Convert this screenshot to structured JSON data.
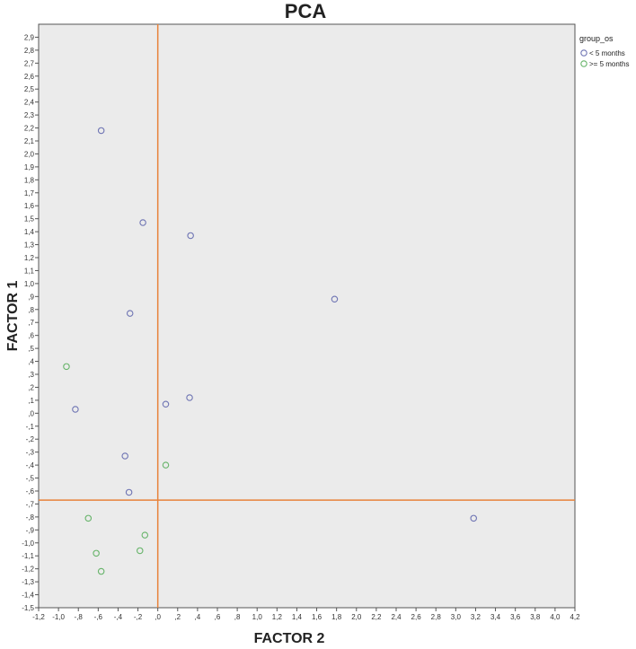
{
  "chart_data": {
    "type": "scatter",
    "title": "PCA",
    "xlabel": "FACTOR 2",
    "ylabel": "FACTOR 1",
    "xlim": [
      -1.2,
      4.2
    ],
    "ylim": [
      -1.5,
      3.0
    ],
    "x_tick_step": 0.2,
    "y_tick_step": 0.1,
    "x_tick_labels": [
      "-1,2",
      "-1,0",
      "-,8",
      "-,6",
      "-,4",
      "-,2",
      ",0",
      ",2",
      ",4",
      ",6",
      ",8",
      "1,0",
      "1,2",
      "1,4",
      "1,6",
      "1,8",
      "2,0",
      "2,2",
      "2,4",
      "2,6",
      "2,8",
      "3,0",
      "3,2",
      "3,4",
      "3,6",
      "3,8",
      "4,0",
      "4,2"
    ],
    "y_tick_labels": [
      "-1,5",
      "-1,4",
      "-1,3",
      "-1,2",
      "-1,1",
      "-1,0",
      "-,9",
      "-,8",
      "-,7",
      "-,6",
      "-,5",
      "-,4",
      "-,3",
      "-,2",
      "-,1",
      ",0",
      ",1",
      ",2",
      ",3",
      ",4",
      ",5",
      ",6",
      ",7",
      ",8",
      ",9",
      "1,0",
      "1,1",
      "1,2",
      "1,3",
      "1,4",
      "1,5",
      "1,6",
      "1,7",
      "1,8",
      "1,9",
      "2,0",
      "2,1",
      "2,2",
      "2,3",
      "2,4",
      "2,5",
      "2,6",
      "2,7",
      "2,8",
      "2,9"
    ],
    "grid": false,
    "background": "#ebebeb",
    "reference_lines": {
      "x": 0.0,
      "y": -0.67,
      "color": "#e8823a"
    },
    "legend": {
      "title": "group_os",
      "placement": "top-right",
      "entries": [
        {
          "label": "< 5 months",
          "color": "#6e74b3"
        },
        {
          "label": ">= 5 months",
          "color": "#67b46a"
        }
      ]
    },
    "series": [
      {
        "name": "< 5 months",
        "color": "#6e74b3",
        "points": [
          {
            "x": -0.57,
            "y": 2.18
          },
          {
            "x": -0.15,
            "y": 1.47
          },
          {
            "x": 0.33,
            "y": 1.37
          },
          {
            "x": 1.78,
            "y": 0.88
          },
          {
            "x": -0.28,
            "y": 0.77
          },
          {
            "x": 0.32,
            "y": 0.12
          },
          {
            "x": 0.08,
            "y": 0.07
          },
          {
            "x": -0.83,
            "y": 0.03
          },
          {
            "x": -0.33,
            "y": -0.33
          },
          {
            "x": -0.29,
            "y": -0.61
          },
          {
            "x": 3.18,
            "y": -0.81
          }
        ]
      },
      {
        "name": ">= 5 months",
        "color": "#67b46a",
        "points": [
          {
            "x": -0.92,
            "y": 0.36
          },
          {
            "x": 0.08,
            "y": -0.4
          },
          {
            "x": -0.7,
            "y": -0.81
          },
          {
            "x": -0.13,
            "y": -0.94
          },
          {
            "x": -0.62,
            "y": -1.08
          },
          {
            "x": -0.18,
            "y": -1.06
          },
          {
            "x": -0.57,
            "y": -1.22
          }
        ]
      }
    ]
  }
}
